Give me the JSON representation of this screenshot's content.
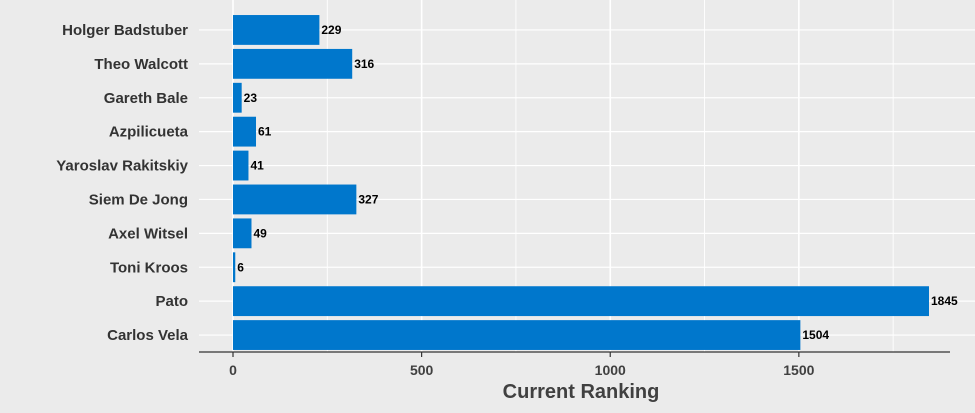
{
  "chart_data": {
    "type": "bar",
    "orientation": "horizontal",
    "categories": [
      "Holger Badstuber",
      "Theo Walcott",
      "Gareth Bale",
      "Azpilicueta",
      "Yaroslav Rakitskiy",
      "Siem De Jong",
      "Axel Witsel",
      "Toni Kroos",
      "Pato",
      "Carlos Vela"
    ],
    "values": [
      229,
      316,
      23,
      61,
      41,
      327,
      49,
      6,
      1845,
      1504
    ],
    "value_labels": [
      "229",
      "316",
      "23",
      "61",
      "41",
      "327",
      "49",
      "6",
      "1845",
      "1504"
    ],
    "xlabel": "Current Ranking",
    "ylabel": "",
    "title": "",
    "xlim": [
      0,
      1845
    ],
    "xticks": [
      0,
      500,
      1000,
      1500
    ],
    "xtick_labels": [
      "0",
      "500",
      "1000",
      "1500"
    ],
    "grid": true,
    "colors": {
      "bar": "#0077cc",
      "background": "#ebebeb",
      "grid": "#ffffff"
    }
  }
}
